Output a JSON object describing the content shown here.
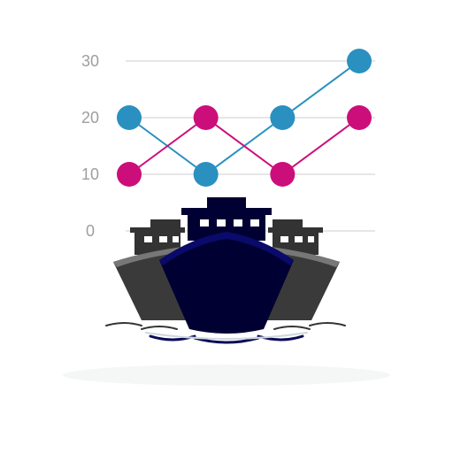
{
  "chart_data": {
    "type": "line",
    "title": "",
    "xlabel": "",
    "ylabel": "",
    "x": [
      1,
      2,
      3,
      4
    ],
    "ylim": [
      0,
      30
    ],
    "yticks": [
      0,
      10,
      20,
      30
    ],
    "grid": true,
    "series": [
      {
        "values": [
          20,
          10,
          20,
          30
        ],
        "color": "#2a90c0"
      },
      {
        "values": [
          10,
          20,
          10,
          20
        ],
        "color": "#cc0e7a"
      }
    ]
  },
  "illustration": {
    "icon": "cargo-ships-icon",
    "hull_dark": "#000033",
    "hull_grey": "#3a3a3a",
    "water": "#0a0a55"
  }
}
